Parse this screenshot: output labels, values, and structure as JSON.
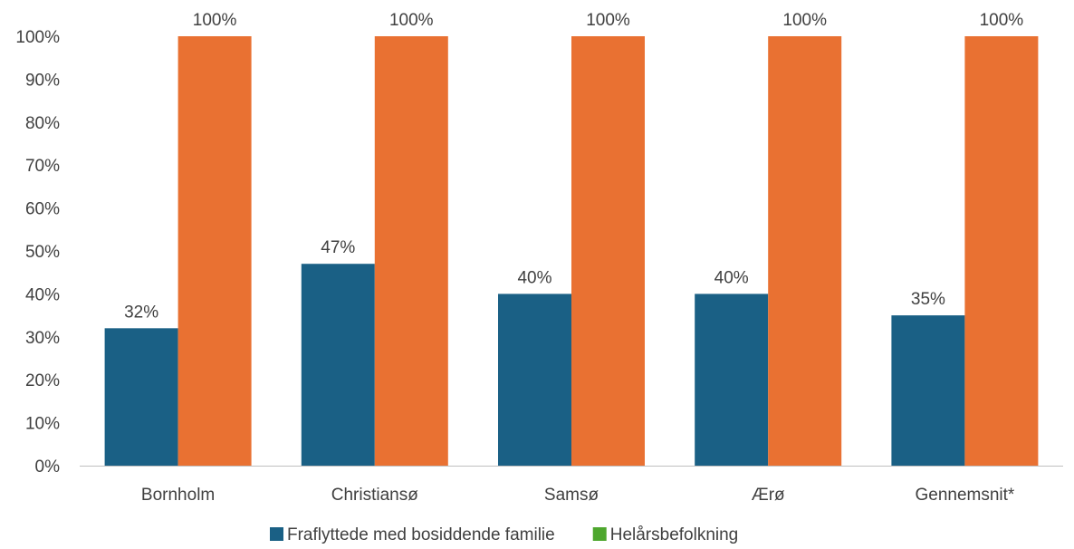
{
  "chart_data": {
    "type": "bar",
    "categories": [
      "Bornholm",
      "Christiansø",
      "Samsø",
      "Ærø",
      "Gennemsnit*"
    ],
    "series": [
      {
        "name": "Fraflyttede med bosiddende familie",
        "values": [
          32,
          47,
          40,
          40,
          35
        ],
        "labels": [
          "32%",
          "47%",
          "40%",
          "40%",
          "35%"
        ],
        "color": "#1a6085"
      },
      {
        "name": "Helårsbefolkning",
        "values": [
          100,
          100,
          100,
          100,
          100
        ],
        "labels": [
          "100%",
          "100%",
          "100%",
          "100%",
          "100%"
        ],
        "color": "#e97132",
        "legend_color": "#4ea72e"
      }
    ],
    "ylim": [
      0,
      100
    ],
    "yticks": [
      0,
      10,
      20,
      30,
      40,
      50,
      60,
      70,
      80,
      90,
      100
    ],
    "ytick_labels": [
      "0%",
      "10%",
      "20%",
      "30%",
      "40%",
      "50%",
      "60%",
      "70%",
      "80%",
      "90%",
      "100%"
    ],
    "grid": false,
    "legend_position": "bottom",
    "axis_color": "#bfbfbf",
    "text_color": "#404040"
  }
}
